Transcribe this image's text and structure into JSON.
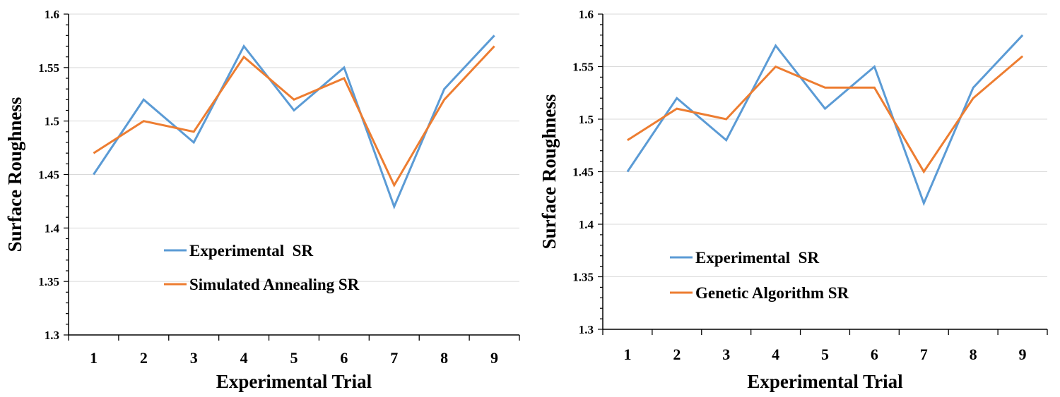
{
  "chart_data": [
    {
      "type": "line",
      "title": "",
      "xlabel": "Experimental Trial",
      "ylabel": "Surface Roughness",
      "categories": [
        "1",
        "2",
        "3",
        "4",
        "5",
        "6",
        "7",
        "8",
        "9"
      ],
      "ylim": [
        1.3,
        1.6
      ],
      "yticks": [
        "1.3",
        "1.35",
        "1.4",
        "1.45",
        "1.5",
        "1.55",
        "1.6"
      ],
      "grid": "horizontal",
      "legend_position": "lower-left",
      "series": [
        {
          "name": "Experimental  SR",
          "color": "#5b9bd5",
          "values": [
            1.45,
            1.52,
            1.48,
            1.57,
            1.51,
            1.55,
            1.42,
            1.53,
            1.58
          ]
        },
        {
          "name": "Simulated Annealing SR",
          "color": "#ed7d31",
          "values": [
            1.47,
            1.5,
            1.49,
            1.56,
            1.52,
            1.54,
            1.44,
            1.52,
            1.57
          ]
        }
      ]
    },
    {
      "type": "line",
      "title": "",
      "xlabel": "Experimental Trial",
      "ylabel": "Surface Roughness",
      "categories": [
        "1",
        "2",
        "3",
        "4",
        "5",
        "6",
        "7",
        "8",
        "9"
      ],
      "ylim": [
        1.3,
        1.6
      ],
      "yticks": [
        "1.3",
        "1.35",
        "1.4",
        "1.45",
        "1.5",
        "1.55",
        "1.6"
      ],
      "grid": "horizontal",
      "legend_position": "lower-left",
      "series": [
        {
          "name": "Experimental  SR",
          "color": "#5b9bd5",
          "values": [
            1.45,
            1.52,
            1.48,
            1.57,
            1.51,
            1.55,
            1.42,
            1.53,
            1.58
          ]
        },
        {
          "name": "Genetic Algorithm SR",
          "color": "#ed7d31",
          "values": [
            1.48,
            1.51,
            1.5,
            1.55,
            1.53,
            1.53,
            1.45,
            1.52,
            1.56
          ]
        }
      ]
    }
  ]
}
